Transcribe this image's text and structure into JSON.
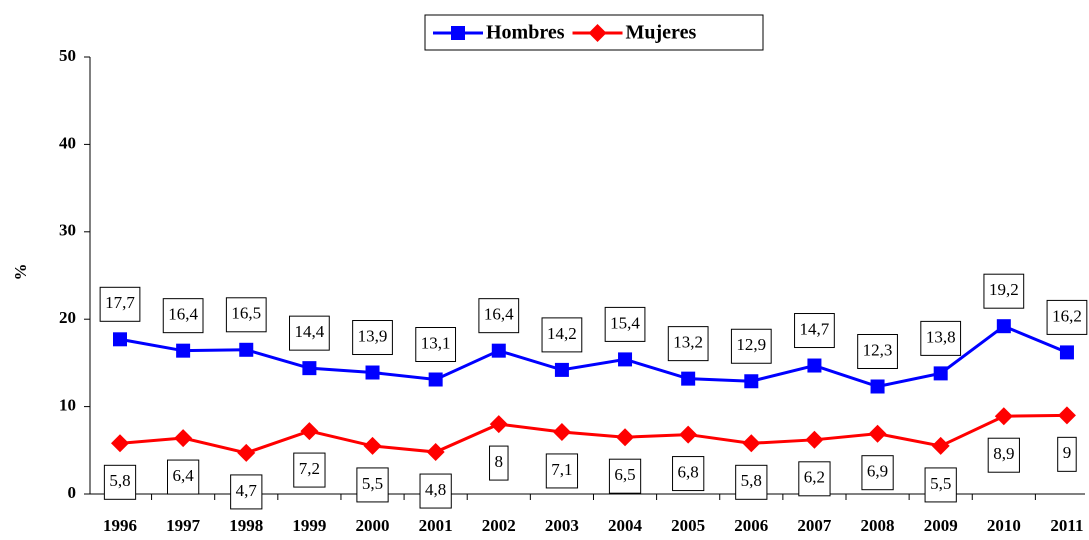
{
  "chart_data": {
    "type": "line",
    "y_label": "%",
    "categories": [
      "1996",
      "1997",
      "1998",
      "1999",
      "2000",
      "2001",
      "2002",
      "2003",
      "2004",
      "2005",
      "2006",
      "2007",
      "2008",
      "2009",
      "2010",
      "2011"
    ],
    "series": [
      {
        "name": "Hombres",
        "color": "#0000ff",
        "marker": "square",
        "values": [
          17.7,
          16.4,
          16.5,
          14.4,
          13.9,
          13.1,
          16.4,
          14.2,
          15.4,
          13.2,
          12.9,
          14.7,
          12.3,
          13.8,
          19.2,
          16.2
        ],
        "value_labels": [
          "17,7",
          "16,4",
          "16,5",
          "14,4",
          "13,9",
          "13,1",
          "16,4",
          "14,2",
          "15,4",
          "13,2",
          "12,9",
          "14,7",
          "12,3",
          "13,8",
          "19,2",
          "16,2"
        ]
      },
      {
        "name": "Mujeres",
        "color": "#ff0000",
        "marker": "diamond",
        "values": [
          5.8,
          6.4,
          4.7,
          7.2,
          5.5,
          4.8,
          8,
          7.1,
          6.5,
          6.8,
          5.8,
          6.2,
          6.9,
          5.5,
          8.9,
          9
        ],
        "value_labels": [
          "5,8",
          "6,4",
          "4,7",
          "7,2",
          "5,5",
          "4,8",
          "8",
          "7,1",
          "6,5",
          "6,8",
          "5,8",
          "6,2",
          "6,9",
          "5,5",
          "8,9",
          "9"
        ]
      }
    ],
    "ylim": [
      0,
      50
    ],
    "yticks": [
      0,
      10,
      20,
      30,
      40,
      50
    ],
    "legend": "top"
  }
}
